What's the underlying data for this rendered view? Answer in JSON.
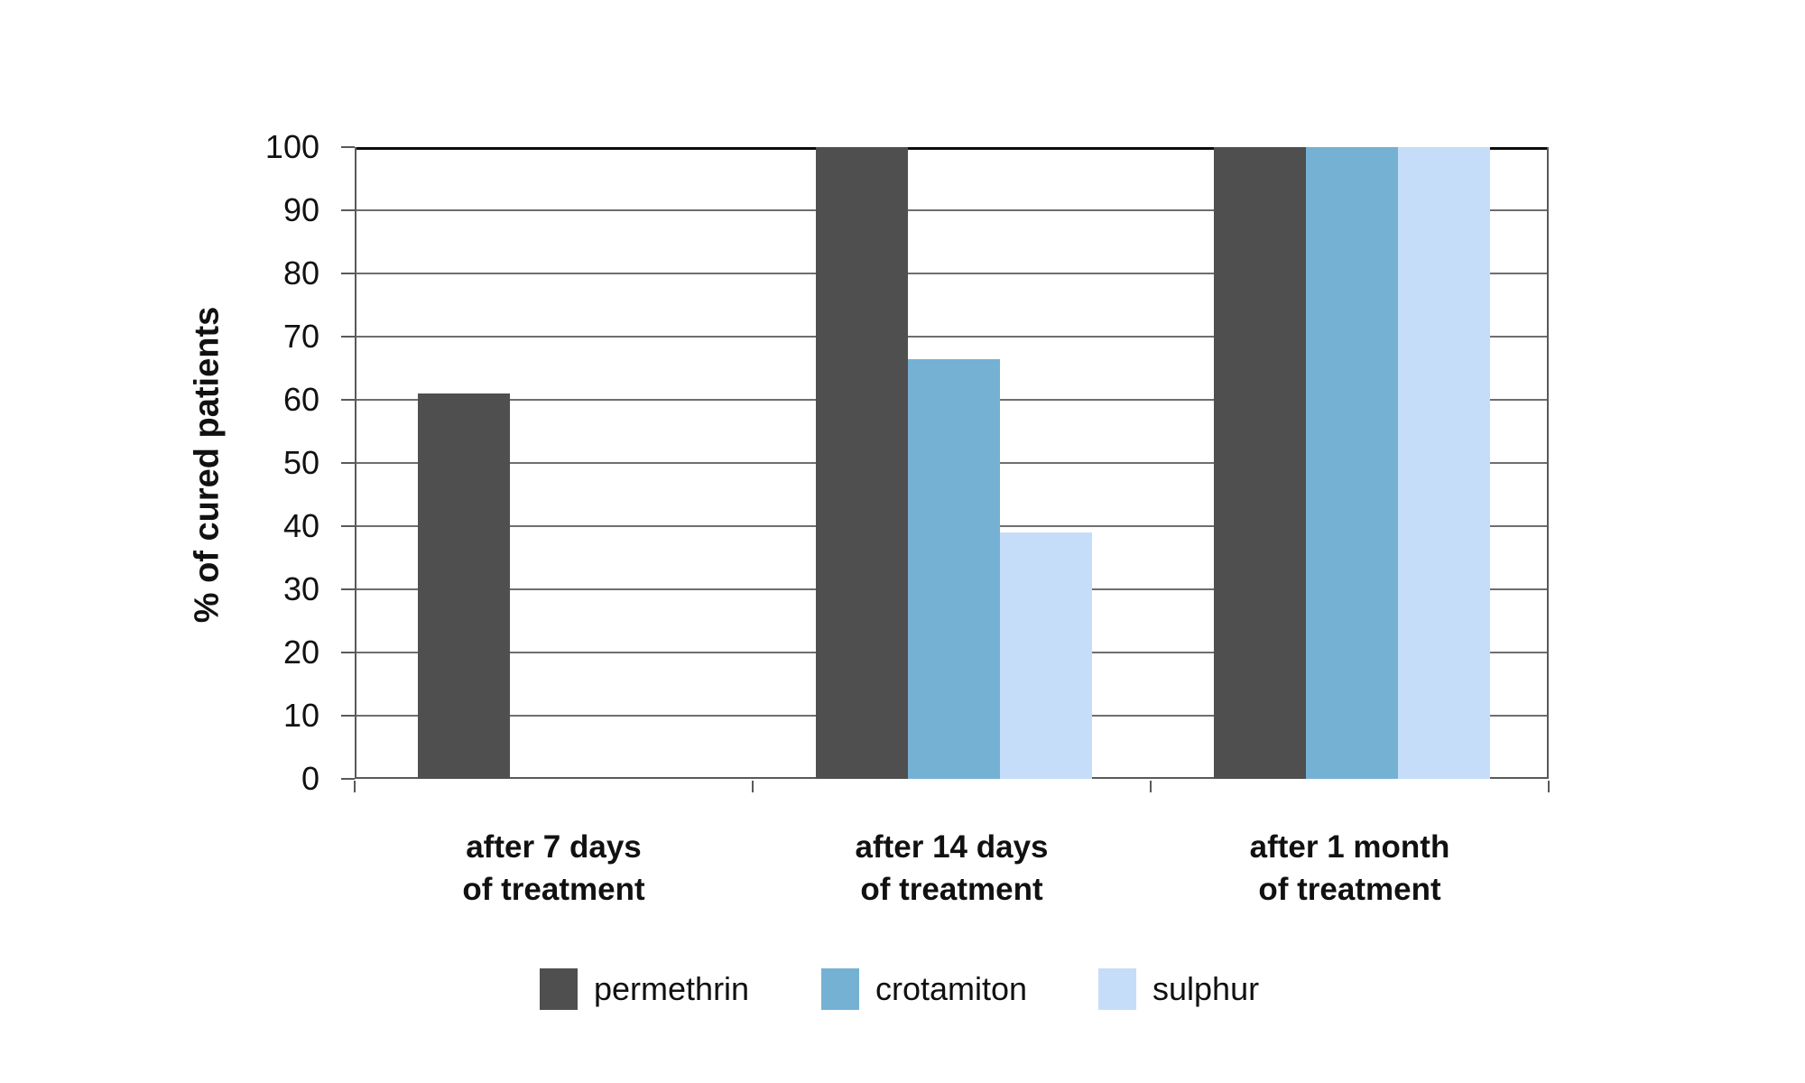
{
  "chart_data": {
    "type": "bar",
    "title": "",
    "xlabel": "",
    "ylabel": "% of cured patients",
    "categories": [
      "after 7 days\nof treatment",
      "after 14 days\nof treatment",
      "after 1 month\nof treatment"
    ],
    "series": [
      {
        "name": "permethrin",
        "color": "#4f4f4f",
        "values": [
          61,
          100,
          100
        ]
      },
      {
        "name": "crotamiton",
        "color": "#75b1d3",
        "values": [
          null,
          66.5,
          100
        ]
      },
      {
        "name": "sulphur",
        "color": "#c5ddf8",
        "values": [
          null,
          39,
          100
        ]
      }
    ],
    "ylim": [
      0,
      100
    ],
    "yticks": [
      0,
      10,
      20,
      30,
      40,
      50,
      60,
      70,
      80,
      90,
      100
    ],
    "grid": "horizontal",
    "legend_position": "bottom",
    "legend": [
      "permethrin",
      "crotamiton",
      "sulphur"
    ]
  },
  "styles": {
    "background": "#ffffff",
    "grid_color": "#6e6e6e",
    "border_color": "#595959",
    "top_line_color": "#0d0d0d",
    "text_color": "#111111"
  }
}
